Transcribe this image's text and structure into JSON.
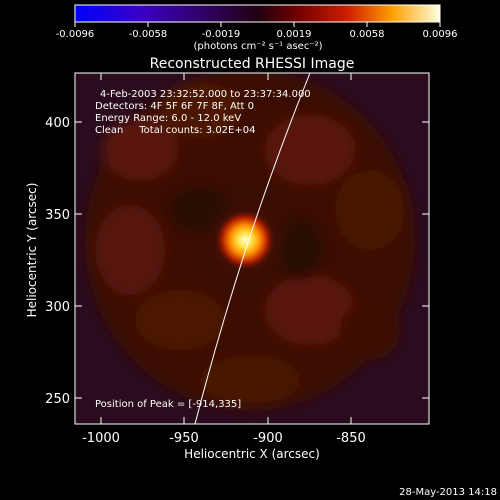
{
  "colorbar": {
    "ticks": [
      "-0.0096",
      "-0.0058",
      "-0.0019",
      "0.0019",
      "0.0058",
      "0.0096"
    ],
    "units": "(photons cm⁻² s⁻¹ asec⁻²)"
  },
  "title": "Reconstructed RHESSI Image",
  "info": {
    "time": "4-Feb-2003 23:32:52.000 to 23:37:34.000",
    "detectors": "Detectors: 4F 5F 6F 7F 8F, Att 0",
    "energy": "Energy Range: 6.0 - 12.0 keV",
    "clean": "Clean     Total counts: 3.02E+04"
  },
  "peak": "Position of Peak = [-914,335]",
  "axes": {
    "xlabel": "Heliocentric X (arcsec)",
    "ylabel": "Heliocentric Y (arcsec)",
    "xticks": [
      "-1000",
      "-950",
      "-900",
      "-850"
    ],
    "yticks": [
      "250",
      "300",
      "350",
      "400"
    ]
  },
  "footer_date": "28-May-2013 14:18",
  "colors": {
    "background": "#000000",
    "image_base": "#2c0a06",
    "limb": "#ffffff"
  }
}
